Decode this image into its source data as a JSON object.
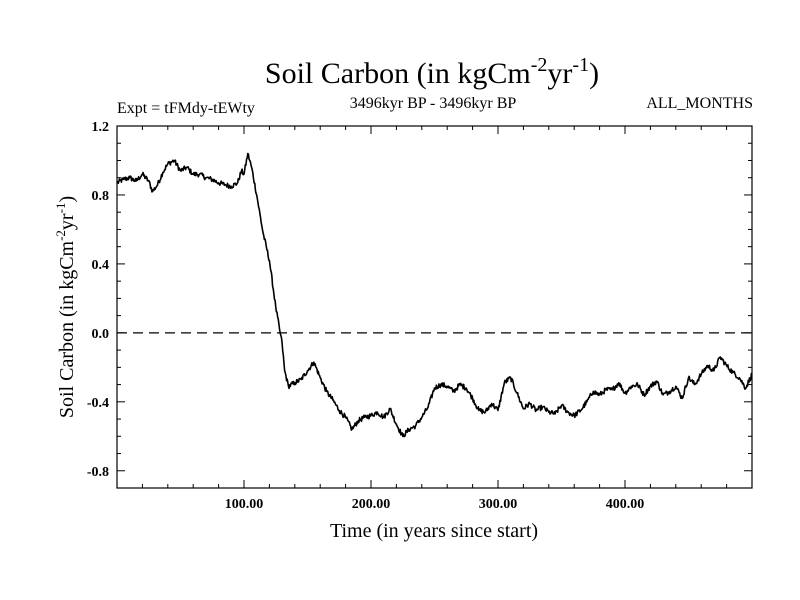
{
  "chart_data": {
    "type": "line",
    "title": "Soil Carbon (in kgCm",
    "title_sup_1": "-2",
    "title_mid": "yr",
    "title_sup_2": "-1",
    "title_end": ")",
    "subtitle_left": "Expt = tFMdy-tEWty",
    "subtitle_center": "3496kyr BP - 3496kyr BP",
    "subtitle_right": "ALL_MONTHS",
    "xlabel": "Time (in years since start)",
    "ylabel": "Soil Carbon (in kgCm",
    "ylabel_sup_1": "-2",
    "ylabel_mid": "yr",
    "ylabel_sup_2": "-1",
    "ylabel_end": ")",
    "xlim": [
      0,
      500
    ],
    "ylim": [
      -0.9,
      1.2
    ],
    "xticks": [
      100,
      200,
      300,
      400
    ],
    "xtick_labels": [
      "100.00",
      "200.00",
      "300.00",
      "400.00"
    ],
    "yticks": [
      1.2,
      0.8,
      0.4,
      0.0,
      -0.4,
      -0.8
    ],
    "ytick_labels": [
      "1.2",
      "0.8",
      "0.4",
      "0.0",
      "-0.4",
      "-0.8"
    ],
    "reference_line": 0.0,
    "series": [
      {
        "name": "Soil Carbon",
        "x": [
          0,
          5,
          10,
          15,
          20,
          25,
          28,
          32,
          36,
          40,
          45,
          50,
          55,
          60,
          65,
          70,
          75,
          80,
          85,
          90,
          95,
          98,
          100,
          103,
          106,
          110,
          115,
          120,
          125,
          128,
          130,
          132,
          135,
          140,
          145,
          150,
          155,
          160,
          165,
          170,
          175,
          180,
          185,
          190,
          195,
          200,
          205,
          210,
          215,
          220,
          225,
          230,
          235,
          240,
          245,
          250,
          255,
          260,
          265,
          270,
          275,
          280,
          285,
          290,
          295,
          300,
          305,
          310,
          315,
          320,
          325,
          330,
          335,
          340,
          345,
          350,
          355,
          360,
          365,
          370,
          375,
          380,
          385,
          390,
          395,
          400,
          405,
          410,
          415,
          420,
          425,
          430,
          435,
          440,
          445,
          450,
          455,
          460,
          465,
          470,
          475,
          480,
          485,
          490,
          495,
          500
        ],
        "values": [
          0.87,
          0.89,
          0.9,
          0.88,
          0.92,
          0.88,
          0.82,
          0.86,
          0.93,
          0.98,
          1.0,
          0.94,
          0.96,
          0.92,
          0.92,
          0.9,
          0.89,
          0.87,
          0.86,
          0.85,
          0.87,
          0.94,
          0.92,
          1.04,
          0.96,
          0.8,
          0.58,
          0.42,
          0.15,
          0.02,
          -0.06,
          -0.22,
          -0.31,
          -0.29,
          -0.27,
          -0.22,
          -0.17,
          -0.26,
          -0.34,
          -0.39,
          -0.45,
          -0.49,
          -0.56,
          -0.51,
          -0.49,
          -0.48,
          -0.46,
          -0.49,
          -0.44,
          -0.53,
          -0.6,
          -0.56,
          -0.54,
          -0.49,
          -0.43,
          -0.32,
          -0.3,
          -0.31,
          -0.34,
          -0.3,
          -0.32,
          -0.38,
          -0.45,
          -0.46,
          -0.41,
          -0.45,
          -0.29,
          -0.26,
          -0.35,
          -0.44,
          -0.41,
          -0.45,
          -0.43,
          -0.46,
          -0.47,
          -0.42,
          -0.46,
          -0.48,
          -0.45,
          -0.4,
          -0.34,
          -0.36,
          -0.33,
          -0.33,
          -0.29,
          -0.35,
          -0.31,
          -0.3,
          -0.36,
          -0.31,
          -0.28,
          -0.36,
          -0.34,
          -0.31,
          -0.38,
          -0.26,
          -0.3,
          -0.24,
          -0.19,
          -0.22,
          -0.14,
          -0.19,
          -0.23,
          -0.26,
          -0.32,
          -0.24
        ]
      }
    ]
  }
}
